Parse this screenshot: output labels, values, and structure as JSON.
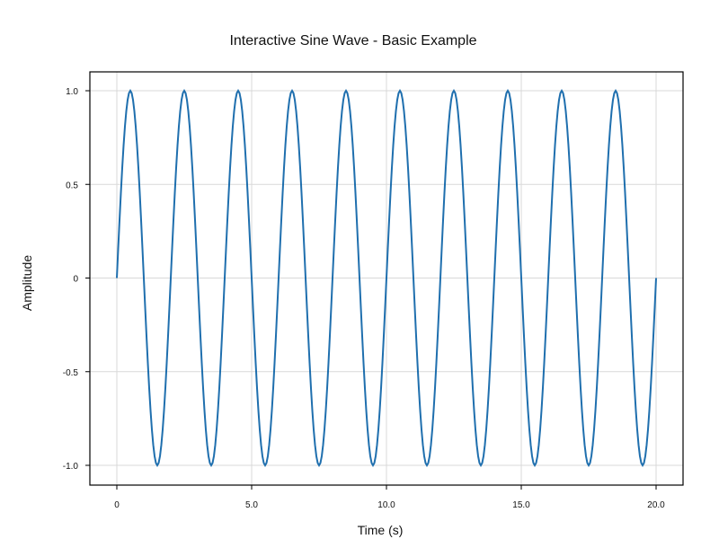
{
  "chart_data": {
    "type": "line",
    "title": "Interactive Sine Wave - Basic Example",
    "xlabel": "Time (s)",
    "ylabel": "Amplitude",
    "xlim": [
      0,
      20
    ],
    "ylim": [
      -1,
      1
    ],
    "grid": true,
    "x_ticks": [
      0,
      5,
      10,
      15,
      20
    ],
    "x_tick_labels": [
      "0",
      "5.0",
      "10.0",
      "15.0",
      "20.0"
    ],
    "y_ticks": [
      -1,
      -0.5,
      0,
      0.5,
      1
    ],
    "y_tick_labels": [
      "-1.0",
      "-0.5",
      "0",
      "0.5",
      "1.0"
    ],
    "series": [
      {
        "color": "#1f6fae",
        "function": "sin",
        "amplitude": 1,
        "frequency": 0.5,
        "x_start": 0,
        "x_end": 20,
        "sample_count": 401
      }
    ]
  }
}
